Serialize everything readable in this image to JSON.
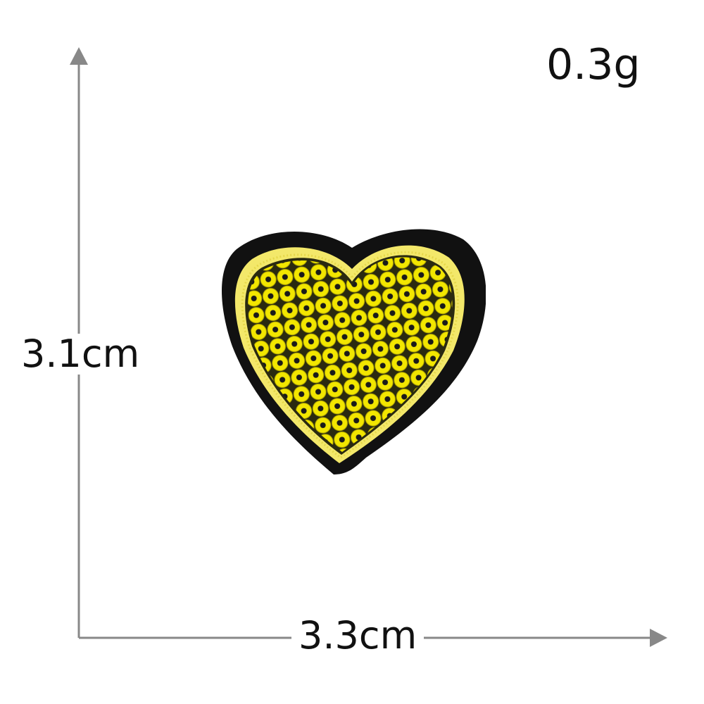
{
  "labels": {
    "weight": "0.3g",
    "height": "3.1cm",
    "width": "3.3cm"
  },
  "colors": {
    "axis": "#888888",
    "text": "#111111",
    "background": "#ffffff",
    "patch_border": "#111111",
    "patch_outline": "#f3e86a",
    "sequin": "#f2e600",
    "sequin_hole": "#1a1a1a"
  },
  "image": {
    "subject": "heart-patch"
  }
}
